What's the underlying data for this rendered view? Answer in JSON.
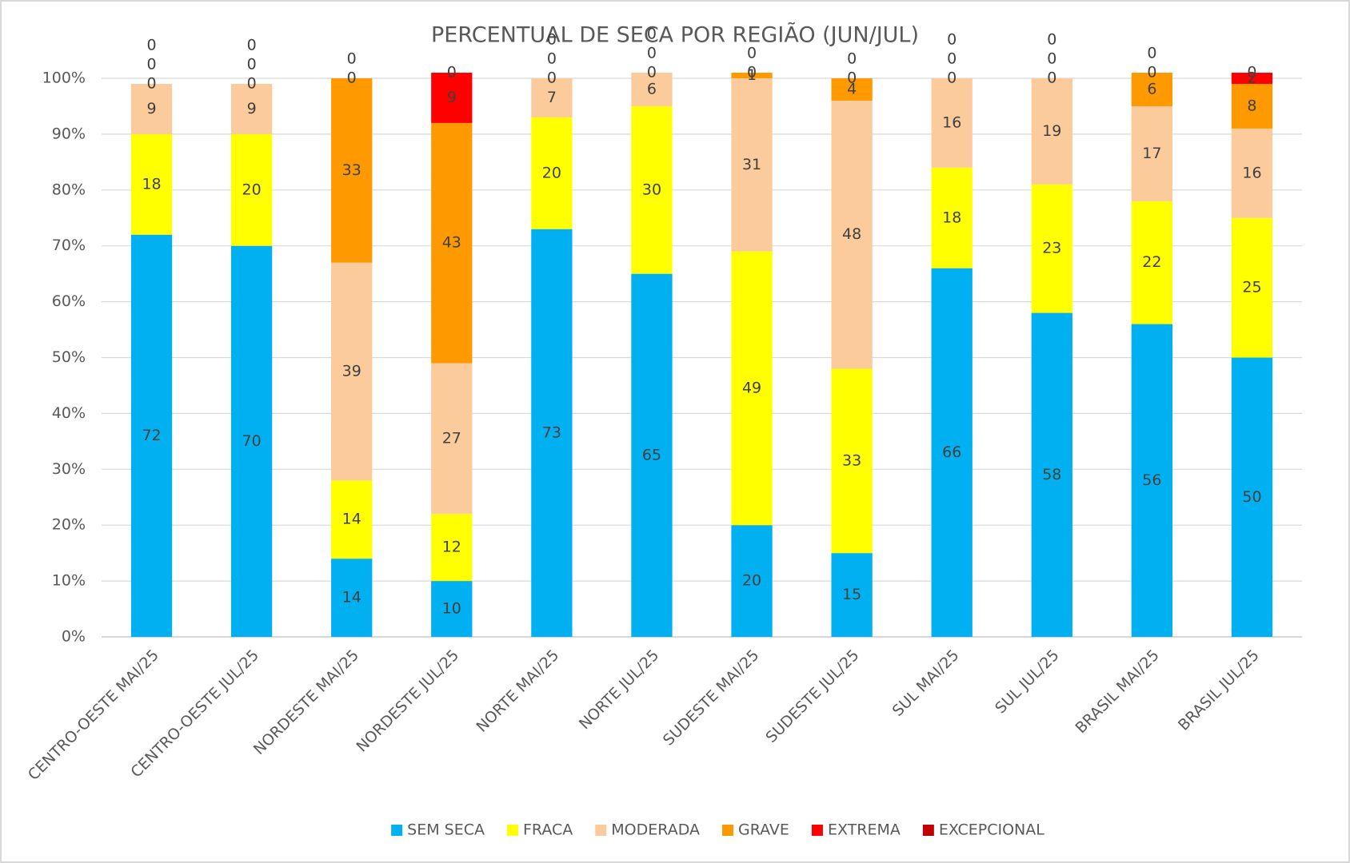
{
  "chart_data": {
    "type": "stacked_bar",
    "title": "PERCENTUAL DE SECA POR REGIÃO (JUN/JUL)",
    "categories": [
      "CENTRO-OESTE MAI/25",
      "CENTRO-OESTE JUL/25",
      "NORDESTE MAI/25",
      "NORDESTE JUL/25",
      "NORTE MAI/25",
      "NORTE JUL/25",
      "SUDESTE MAI/25",
      "SUDESTE JUL/25",
      "SUL MAI/25",
      "SUL JUL/25",
      "BRASIL MAI/25",
      "BRASIL JUL/25"
    ],
    "series": [
      {
        "name": "SEM SECA",
        "color": "#00b0f0",
        "values": [
          72,
          70,
          14,
          10,
          73,
          65,
          20,
          15,
          66,
          58,
          56,
          50
        ]
      },
      {
        "name": "FRACA",
        "color": "#ffff00",
        "values": [
          18,
          20,
          14,
          12,
          20,
          30,
          49,
          33,
          18,
          23,
          22,
          25
        ]
      },
      {
        "name": "MODERADA",
        "color": "#fbcb9c",
        "values": [
          9,
          9,
          39,
          27,
          7,
          6,
          31,
          48,
          16,
          19,
          17,
          16
        ]
      },
      {
        "name": "GRAVE",
        "color": "#ff9900",
        "values": [
          0,
          0,
          33,
          43,
          0,
          0,
          1,
          4,
          0,
          0,
          6,
          8
        ]
      },
      {
        "name": "EXTREMA",
        "color": "#ff0000",
        "values": [
          0,
          0,
          0,
          9,
          0,
          0,
          0,
          0,
          0,
          0,
          0,
          2
        ]
      },
      {
        "name": "EXCEPCIONAL",
        "color": "#c00000",
        "values": [
          0,
          0,
          0,
          0,
          0,
          0,
          0,
          0,
          0,
          0,
          0,
          0
        ]
      }
    ],
    "ylim": [
      0,
      100
    ],
    "yticks": [
      {
        "value": 0,
        "label": "0%"
      },
      {
        "value": 10,
        "label": "10%"
      },
      {
        "value": 20,
        "label": "20%"
      },
      {
        "value": 30,
        "label": "30%"
      },
      {
        "value": 40,
        "label": "40%"
      },
      {
        "value": 50,
        "label": "50%"
      },
      {
        "value": 60,
        "label": "60%"
      },
      {
        "value": 70,
        "label": "70%"
      },
      {
        "value": 80,
        "label": "80%"
      },
      {
        "value": 90,
        "label": "90%"
      },
      {
        "value": 100,
        "label": "100%"
      }
    ],
    "grid": true,
    "legend": "bottom"
  }
}
